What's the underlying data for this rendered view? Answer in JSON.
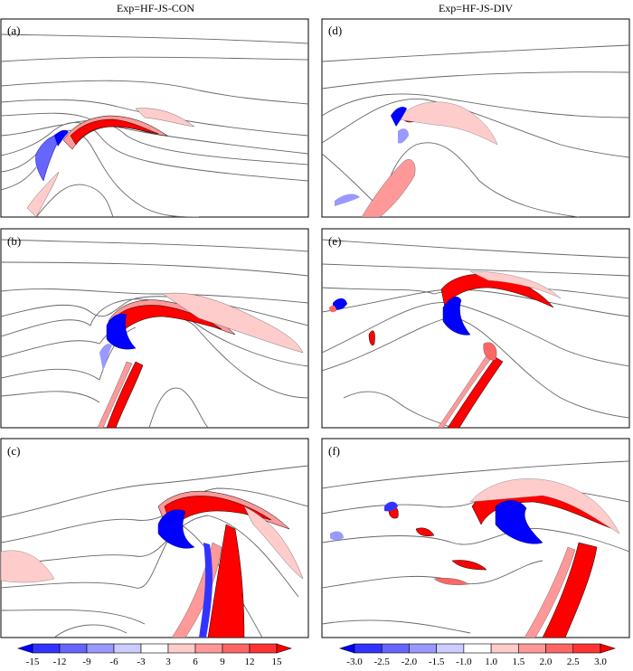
{
  "columns": [
    {
      "title": "Exp=HF-JS-CON"
    },
    {
      "title": "Exp=HF-JS-DIV"
    }
  ],
  "panels": [
    {
      "label": "(a)"
    },
    {
      "label": "(b)"
    },
    {
      "label": "(c)"
    },
    {
      "label": "(d)"
    },
    {
      "label": "(e)"
    },
    {
      "label": "(f)"
    }
  ],
  "chart_data": [
    {
      "type": "heatmap",
      "panels": [
        "(a)",
        "(b)",
        "(c)"
      ],
      "colorbar": {
        "ticks": [
          "-15",
          "-12",
          "-9",
          "-6",
          "-3",
          "3",
          "6",
          "9",
          "12",
          "15"
        ],
        "colors": [
          "#0000ff",
          "#3333ff",
          "#6666ff",
          "#9999ff",
          "#ccccff",
          "#ffffff",
          "#ffcccc",
          "#ff9999",
          "#ff6666",
          "#ff3333",
          "#ff0000"
        ]
      }
    },
    {
      "type": "heatmap",
      "panels": [
        "(d)",
        "(e)",
        "(f)"
      ],
      "colorbar": {
        "ticks": [
          "-3.0",
          "-2.5",
          "-2.0",
          "-1.5",
          "-1.0",
          "1.0",
          "1.5",
          "2.0",
          "2.5",
          "3.0"
        ],
        "colors": [
          "#0000ff",
          "#3333ff",
          "#6666ff",
          "#9999ff",
          "#ccccff",
          "#ffffff",
          "#ffcccc",
          "#ff9999",
          "#ff6666",
          "#ff3333",
          "#ff0000"
        ]
      }
    }
  ]
}
